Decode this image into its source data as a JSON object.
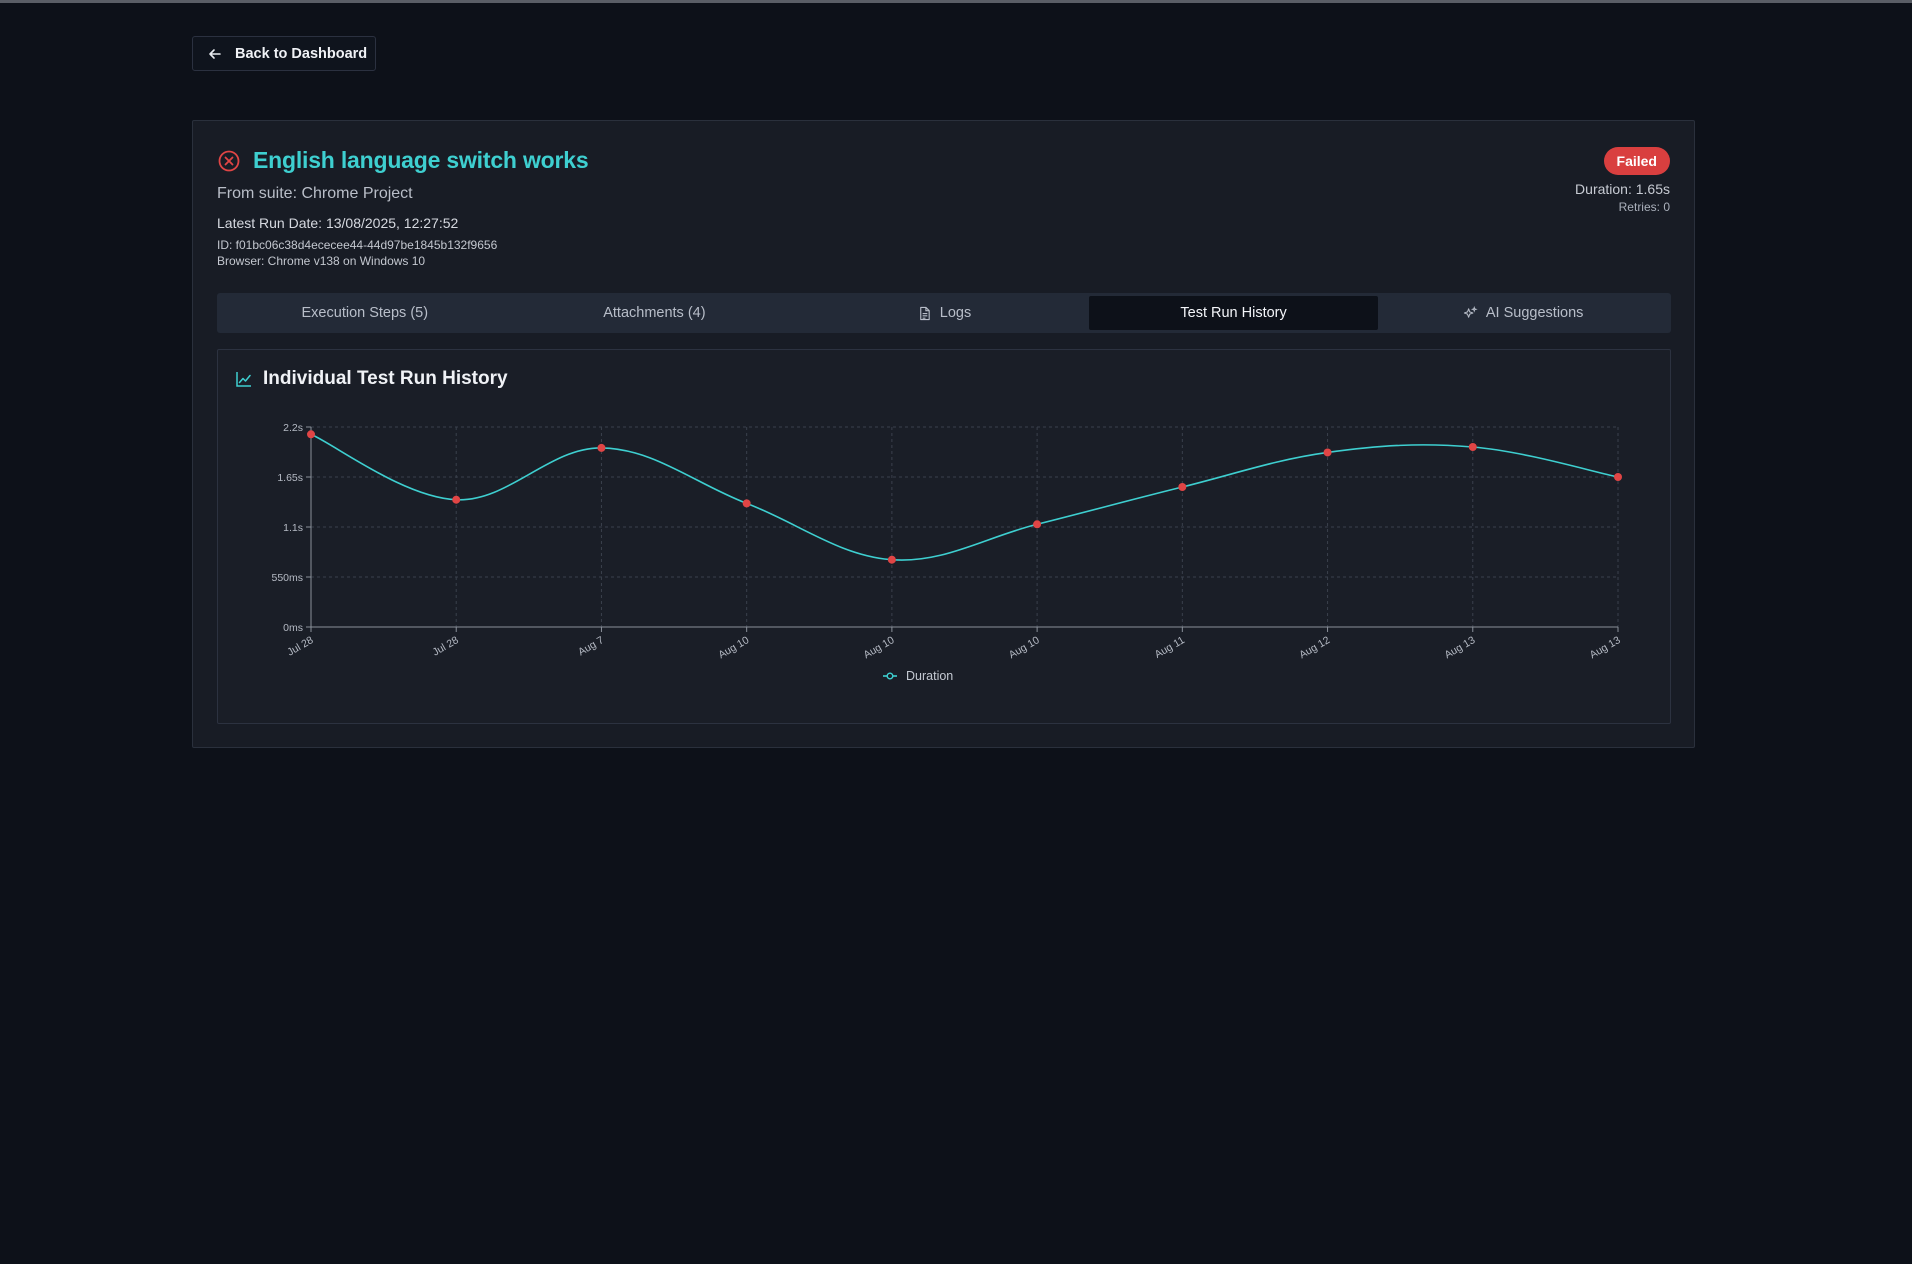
{
  "nav": {
    "back_label": "Back to Dashboard"
  },
  "test": {
    "title": "English language switch works",
    "suite_line": "From suite: Chrome Project",
    "run_date_line": "Latest Run Date: 13/08/2025, 12:27:52",
    "id_line": "ID: f01bc06c38d4ececee44-44d97be1845b132f9656",
    "browser_line": "Browser: Chrome v138 on Windows 10",
    "status": "Failed",
    "duration_line": "Duration: 1.65s",
    "retries_line": "Retries: 0"
  },
  "tabs": [
    {
      "label": "Execution Steps (5)",
      "icon": "",
      "active": false
    },
    {
      "label": "Attachments (4)",
      "icon": "",
      "active": false
    },
    {
      "label": "Logs",
      "icon": "document-icon",
      "active": false
    },
    {
      "label": "Test Run History",
      "icon": "",
      "active": true
    },
    {
      "label": "AI Suggestions",
      "icon": "sparkles-icon",
      "active": false
    }
  ],
  "colors": {
    "accent": "#3ecfd0",
    "failed": "#d93f3f",
    "point": "#e04545",
    "grid": "#3a404c",
    "axis": "#8a909a"
  },
  "chart_data": {
    "type": "line",
    "title": "Individual Test Run History",
    "categories": [
      "Jul 28",
      "Jul 28",
      "Aug 7",
      "Aug 10",
      "Aug 10",
      "Aug 10",
      "Aug 11",
      "Aug 12",
      "Aug 13",
      "Aug 13"
    ],
    "series": [
      {
        "name": "Duration",
        "unit": "ms",
        "values": [
          2120,
          1400,
          1970,
          1360,
          740,
          1130,
          1540,
          1920,
          1980,
          1650
        ]
      }
    ],
    "ylim": [
      0,
      2200
    ],
    "yticks": [
      {
        "value": 0,
        "label": "0ms"
      },
      {
        "value": 550,
        "label": "550ms"
      },
      {
        "value": 1100,
        "label": "1.1s"
      },
      {
        "value": 1650,
        "label": "1.65s"
      },
      {
        "value": 2200,
        "label": "2.2s"
      }
    ],
    "legend": "bottom-center",
    "grid": true
  }
}
